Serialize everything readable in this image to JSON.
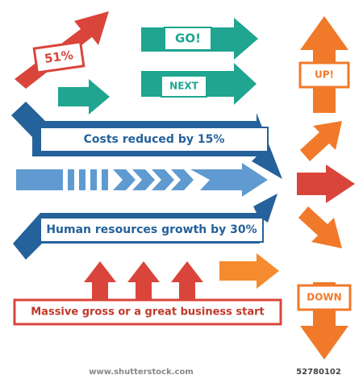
{
  "labels": {
    "percent": "51%",
    "go": "GO!",
    "next": "NEXT",
    "up": "UP!",
    "costs": "Costs reduced by 15%",
    "human": "Human resources growth by 30%",
    "massive": "Massive gross or a great business start",
    "down": "DOWN"
  },
  "footer": {
    "site": "www.shutterstock.com",
    "id": "52780102"
  }
}
